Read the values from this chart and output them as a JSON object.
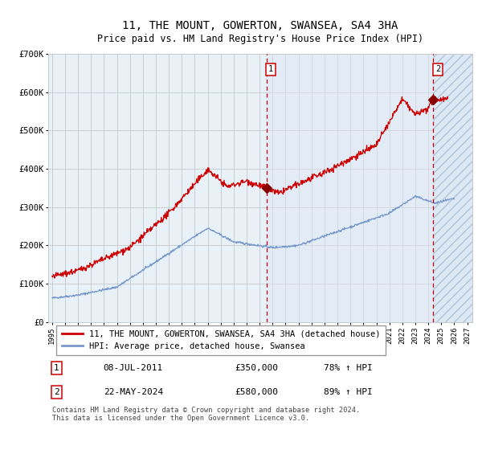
{
  "title": "11, THE MOUNT, GOWERTON, SWANSEA, SA4 3HA",
  "subtitle": "Price paid vs. HM Land Registry's House Price Index (HPI)",
  "title_fontsize": 10,
  "subtitle_fontsize": 9,
  "ylim": [
    0,
    700000
  ],
  "yticks": [
    0,
    100000,
    200000,
    300000,
    400000,
    500000,
    600000,
    700000
  ],
  "ytick_labels": [
    "£0",
    "£100K",
    "£200K",
    "£300K",
    "£400K",
    "£500K",
    "£600K",
    "£700K"
  ],
  "x_start_year": 1995,
  "x_end_year": 2027,
  "xtick_years": [
    1995,
    1996,
    1997,
    1998,
    1999,
    2000,
    2001,
    2002,
    2003,
    2004,
    2005,
    2006,
    2007,
    2008,
    2009,
    2010,
    2011,
    2012,
    2013,
    2014,
    2015,
    2016,
    2017,
    2018,
    2019,
    2020,
    2021,
    2022,
    2023,
    2024,
    2025,
    2026,
    2027
  ],
  "grid_color": "#c8c8c8",
  "plot_bg": "#e8f0f8",
  "red_line_color": "#cc0000",
  "blue_line_color": "#7799cc",
  "marker_color": "#880000",
  "sale1_year": 2011.52,
  "sale1_price": 350000,
  "sale2_year": 2024.39,
  "sale2_price": 580000,
  "sale1_label": "1",
  "sale2_label": "2",
  "legend_label1": "11, THE MOUNT, GOWERTON, SWANSEA, SA4 3HA (detached house)",
  "legend_label2": "HPI: Average price, detached house, Swansea",
  "annotation1": [
    "1",
    "08-JUL-2011",
    "£350,000",
    "78% ↑ HPI"
  ],
  "annotation2": [
    "2",
    "22-MAY-2024",
    "£580,000",
    "89% ↑ HPI"
  ],
  "footnote": "Contains HM Land Registry data © Crown copyright and database right 2024.\nThis data is licensed under the Open Government Licence v3.0."
}
